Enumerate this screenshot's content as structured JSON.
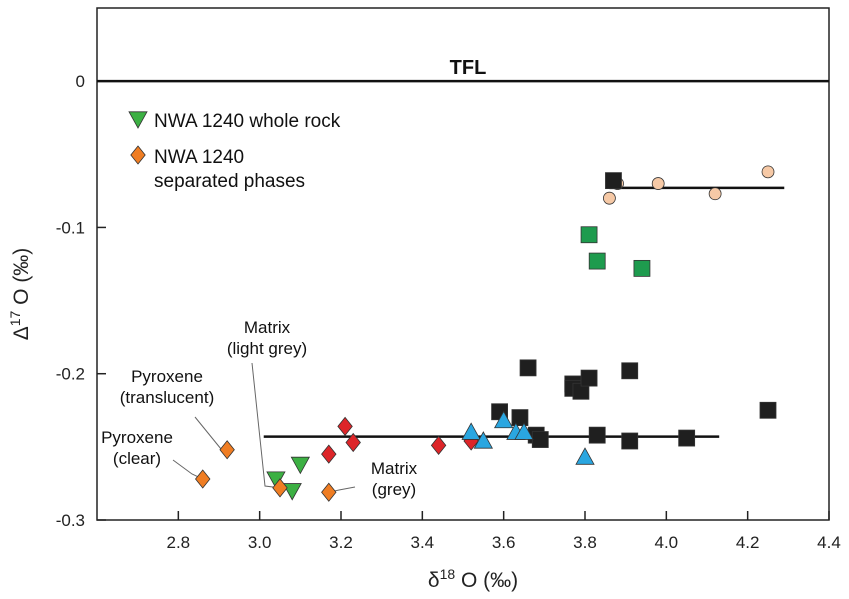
{
  "chart_data": {
    "type": "scatter",
    "title": "",
    "xlabel": {
      "prefix": "δ",
      "sup": "18",
      "suffix": " O (‰)"
    },
    "ylabel": {
      "prefix": "Δ",
      "sup": "17",
      "suffix": " O (‰)"
    },
    "xlim": [
      2.6,
      4.4
    ],
    "ylim": [
      -0.3,
      0.05
    ],
    "x_ticks": [
      "2.8",
      "3.0",
      "3.2",
      "3.4",
      "3.6",
      "3.8",
      "4.0",
      "4.2",
      "4.4"
    ],
    "y_ticks": [
      "0",
      "-0.1",
      "-0.2",
      "-0.3"
    ],
    "y_tick_values": [
      0,
      -0.1,
      -0.2,
      -0.3
    ],
    "x_tick_values": [
      2.8,
      3.0,
      3.2,
      3.4,
      3.6,
      3.8,
      4.0,
      4.2,
      4.4
    ],
    "grid": false,
    "reference_line": {
      "label": "TFL",
      "y": 0
    },
    "fit_lines": [
      {
        "x": [
          3.86,
          4.29
        ],
        "y": [
          -0.073,
          -0.073
        ]
      },
      {
        "x": [
          3.01,
          4.13
        ],
        "y": [
          -0.243,
          -0.243
        ]
      }
    ],
    "legend": [
      {
        "label": "NWA 1240 whole rock",
        "marker": "triangle-down",
        "color": "#3cb043"
      },
      {
        "label": "NWA 1240\nseparated phases",
        "marker": "diamond",
        "color": "#ef7d23"
      }
    ],
    "series": [
      {
        "marker": "circle",
        "color": "#f6c9a6",
        "points": [
          [
            3.88,
            -0.07
          ],
          [
            3.86,
            -0.08
          ],
          [
            3.98,
            -0.07
          ],
          [
            4.12,
            -0.077
          ],
          [
            4.25,
            -0.062
          ]
        ]
      },
      {
        "marker": "square",
        "color": "#1f1f1f",
        "points": [
          [
            3.87,
            -0.068
          ],
          [
            3.66,
            -0.196
          ],
          [
            3.77,
            -0.207
          ],
          [
            3.77,
            -0.21
          ],
          [
            3.79,
            -0.212
          ],
          [
            3.81,
            -0.203
          ],
          [
            3.91,
            -0.198
          ],
          [
            3.59,
            -0.226
          ],
          [
            3.64,
            -0.23
          ],
          [
            3.68,
            -0.242
          ],
          [
            3.69,
            -0.245
          ],
          [
            3.83,
            -0.242
          ],
          [
            3.91,
            -0.246
          ],
          [
            4.05,
            -0.244
          ],
          [
            4.25,
            -0.225
          ]
        ]
      },
      {
        "marker": "square",
        "color": "#1e9b4e",
        "points": [
          [
            3.81,
            -0.105
          ],
          [
            3.83,
            -0.123
          ],
          [
            3.94,
            -0.128
          ]
        ]
      },
      {
        "marker": "diamond",
        "color": "#dd2529",
        "points": [
          [
            3.21,
            -0.236
          ],
          [
            3.23,
            -0.247
          ],
          [
            3.17,
            -0.255
          ],
          [
            3.44,
            -0.249
          ],
          [
            3.52,
            -0.246
          ]
        ]
      },
      {
        "marker": "triangle-up",
        "color": "#2aa6e0",
        "points": [
          [
            3.52,
            -0.24
          ],
          [
            3.55,
            -0.246
          ],
          [
            3.6,
            -0.232
          ],
          [
            3.63,
            -0.24
          ],
          [
            3.65,
            -0.24
          ],
          [
            3.8,
            -0.257
          ]
        ]
      },
      {
        "marker": "triangle-down",
        "color": "#3cb043",
        "points": [
          [
            3.04,
            -0.272
          ],
          [
            3.08,
            -0.28
          ],
          [
            3.1,
            -0.262
          ]
        ]
      },
      {
        "marker": "diamond",
        "color": "#ef7d23",
        "points": [
          [
            2.86,
            -0.272
          ],
          [
            2.92,
            -0.252
          ],
          [
            3.05,
            -0.278
          ],
          [
            3.17,
            -0.281
          ]
        ]
      }
    ],
    "annotations": [
      {
        "lines": [
          "Matrix",
          "(light grey)"
        ],
        "target": [
          3.05,
          -0.278
        ]
      },
      {
        "lines": [
          "Pyroxene",
          "(translucent)"
        ],
        "target": [
          2.92,
          -0.252
        ]
      },
      {
        "lines": [
          "Pyroxene",
          "(clear)"
        ],
        "target": [
          2.86,
          -0.272
        ]
      },
      {
        "lines": [
          "Matrix",
          "(grey)"
        ],
        "target": [
          3.17,
          -0.281
        ]
      }
    ]
  }
}
